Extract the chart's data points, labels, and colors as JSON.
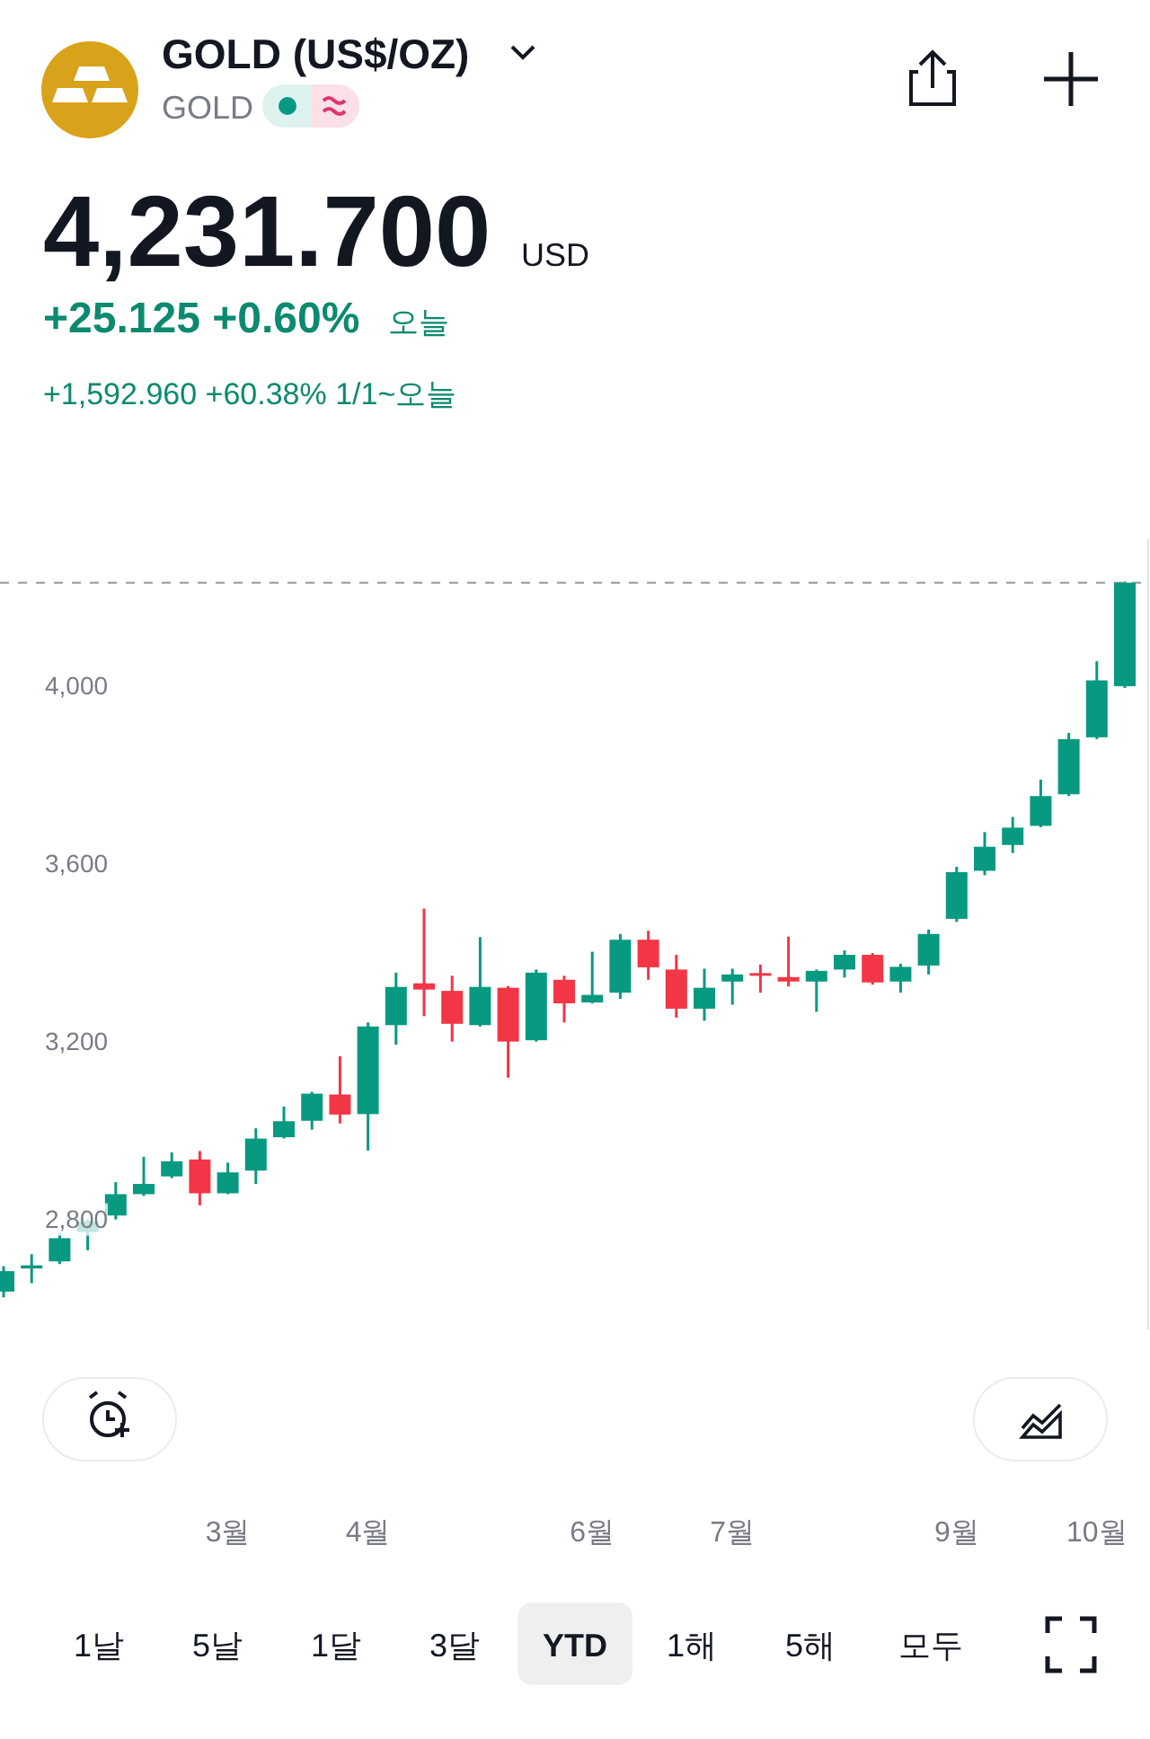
{
  "chart_data": {
    "type": "candlestick",
    "title": "GOLD (US$/OZ)",
    "subtitle": "GOLD",
    "annotations": [
      "4,231.700",
      "USD",
      "+25.125 +0.60%",
      "오늘",
      "+1,592.960 +60.38% 1/1~오늘",
      "1날",
      "5날",
      "1달",
      "3달",
      "YTD",
      "1해",
      "5해",
      "모두"
    ],
    "categories": [
      null,
      null,
      null,
      null,
      null,
      null,
      null,
      null,
      "3월",
      null,
      null,
      null,
      null,
      "4월",
      null,
      null,
      null,
      null,
      null,
      null,
      null,
      "6월",
      null,
      null,
      null,
      null,
      "7월",
      null,
      null,
      null,
      null,
      null,
      null,
      null,
      "9월",
      null,
      null,
      null,
      null,
      "10월",
      null
    ],
    "ohlc": [
      [
        2638,
        2695,
        2625,
        2684
      ],
      [
        2690,
        2722,
        2657,
        2697
      ],
      [
        2706,
        2770,
        2700,
        2758
      ],
      [
        2772,
        2800,
        2731,
        2796
      ],
      [
        2809,
        2884,
        2800,
        2857
      ],
      [
        2857,
        2941,
        2853,
        2880
      ],
      [
        2897,
        2951,
        2893,
        2931
      ],
      [
        2935,
        2954,
        2832,
        2859
      ],
      [
        2859,
        2928,
        2857,
        2906
      ],
      [
        2910,
        3005,
        2880,
        2982
      ],
      [
        2985,
        3054,
        2982,
        3021
      ],
      [
        3022,
        3087,
        3002,
        3083
      ],
      [
        3081,
        3167,
        3016,
        3036
      ],
      [
        3037,
        3243,
        2955,
        3234
      ],
      [
        3237,
        3355,
        3193,
        3323
      ],
      [
        3331,
        3499,
        3257,
        3317
      ],
      [
        3314,
        3348,
        3200,
        3240
      ],
      [
        3237,
        3435,
        3234,
        3323
      ],
      [
        3321,
        3325,
        3119,
        3200
      ],
      [
        3203,
        3362,
        3200,
        3355
      ],
      [
        3339,
        3348,
        3243,
        3286
      ],
      [
        3288,
        3402,
        3286,
        3305
      ],
      [
        3310,
        3442,
        3296,
        3429
      ],
      [
        3429,
        3449,
        3339,
        3367
      ],
      [
        3362,
        3395,
        3254,
        3274
      ],
      [
        3274,
        3364,
        3247,
        3321
      ],
      [
        3335,
        3364,
        3283,
        3351
      ],
      [
        3354,
        3373,
        3310,
        3350
      ],
      [
        3345,
        3436,
        3324,
        3335
      ],
      [
        3335,
        3362,
        3267,
        3359
      ],
      [
        3362,
        3405,
        3344,
        3395
      ],
      [
        3395,
        3399,
        3328,
        3333
      ],
      [
        3335,
        3375,
        3310,
        3368
      ],
      [
        3371,
        3452,
        3351,
        3442
      ],
      [
        3476,
        3593,
        3469,
        3581
      ],
      [
        3584,
        3671,
        3574,
        3638
      ],
      [
        3642,
        3705,
        3624,
        3681
      ],
      [
        3685,
        3789,
        3682,
        3752
      ],
      [
        3756,
        3894,
        3752,
        3880
      ],
      [
        3884,
        4055,
        3880,
        4012
      ],
      [
        3999,
        4234,
        3995,
        4231.7
      ]
    ],
    "colors": [
      "#089981",
      "#089981",
      "#089981",
      "#089981",
      "#089981",
      "#089981",
      "#089981",
      "#f23645",
      "#089981",
      "#089981",
      "#089981",
      "#089981",
      "#f23645",
      "#089981",
      "#089981",
      "#f23645",
      "#f23645",
      "#089981",
      "#f23645",
      "#089981",
      "#f23645",
      "#089981",
      "#089981",
      "#f23645",
      "#f23645",
      "#089981",
      "#089981",
      "#f23645",
      "#f23645",
      "#089981",
      "#089981",
      "#f23645",
      "#089981",
      "#089981",
      "#089981",
      "#089981",
      "#089981",
      "#089981",
      "#089981",
      "#089981",
      "#089981"
    ],
    "ylim": [
      2553,
      4330
    ],
    "yticks": [
      {
        "value": 2800,
        "label": "2,800"
      },
      {
        "value": 3200,
        "label": "3,200"
      },
      {
        "value": 3600,
        "label": "3,600"
      },
      {
        "value": 4000,
        "label": "4,000"
      }
    ],
    "ref_lines": [
      {
        "axis": "y",
        "value": 4231.7,
        "color": "#9598a1",
        "line_style": "dashed"
      }
    ]
  }
}
